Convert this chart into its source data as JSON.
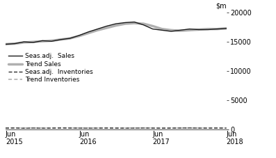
{
  "x_tick_labels": [
    "Jun\n2015",
    "Jun\n2016",
    "Jun\n2017",
    "Jun\n2018"
  ],
  "x_tick_positions": [
    0,
    12,
    24,
    36
  ],
  "ylim": [
    0,
    20000
  ],
  "yticks": [
    0,
    5000,
    10000,
    15000,
    20000
  ],
  "ytick_labels": [
    "0",
    "5000",
    "10000",
    "15000",
    "20000"
  ],
  "seas_sales": [
    14600,
    14700,
    15000,
    14900,
    15200,
    15100,
    15400,
    15600,
    16100,
    16700,
    17200,
    17700,
    18100,
    18300,
    18400,
    17900,
    17200,
    17000,
    16800,
    17000,
    17200,
    17100,
    17100,
    17200,
    17300
  ],
  "trend_sales": [
    14600,
    14700,
    14900,
    15000,
    15100,
    15200,
    15400,
    15600,
    16000,
    16500,
    17000,
    17400,
    17800,
    18100,
    18200,
    18100,
    17700,
    17200,
    17000,
    16900,
    17000,
    17100,
    17200,
    17200,
    17300
  ],
  "seas_inv": [
    250,
    270,
    230,
    260,
    240,
    250,
    270,
    260,
    250,
    240,
    250,
    260,
    250,
    240,
    250,
    260,
    250,
    240,
    250,
    260,
    270,
    250,
    250,
    260,
    250
  ],
  "trend_inv": [
    250,
    250,
    250,
    250,
    250,
    250,
    250,
    250,
    250,
    250,
    250,
    250,
    250,
    250,
    250,
    250,
    250,
    250,
    250,
    250,
    250,
    250,
    250,
    250,
    250
  ],
  "legend_items": [
    "Seas.adj.  Sales",
    "Trend Sales",
    "Seas.adj.  Inventories",
    "Trend Inventories"
  ],
  "color_black": "#1a1a1a",
  "color_gray": "#b0b0b0",
  "color_black_dashed": "#1a1a1a",
  "color_gray_dashed": "#b0b0b0",
  "bg_color": "#ffffff",
  "font_size": 7,
  "title_font_size": 7
}
